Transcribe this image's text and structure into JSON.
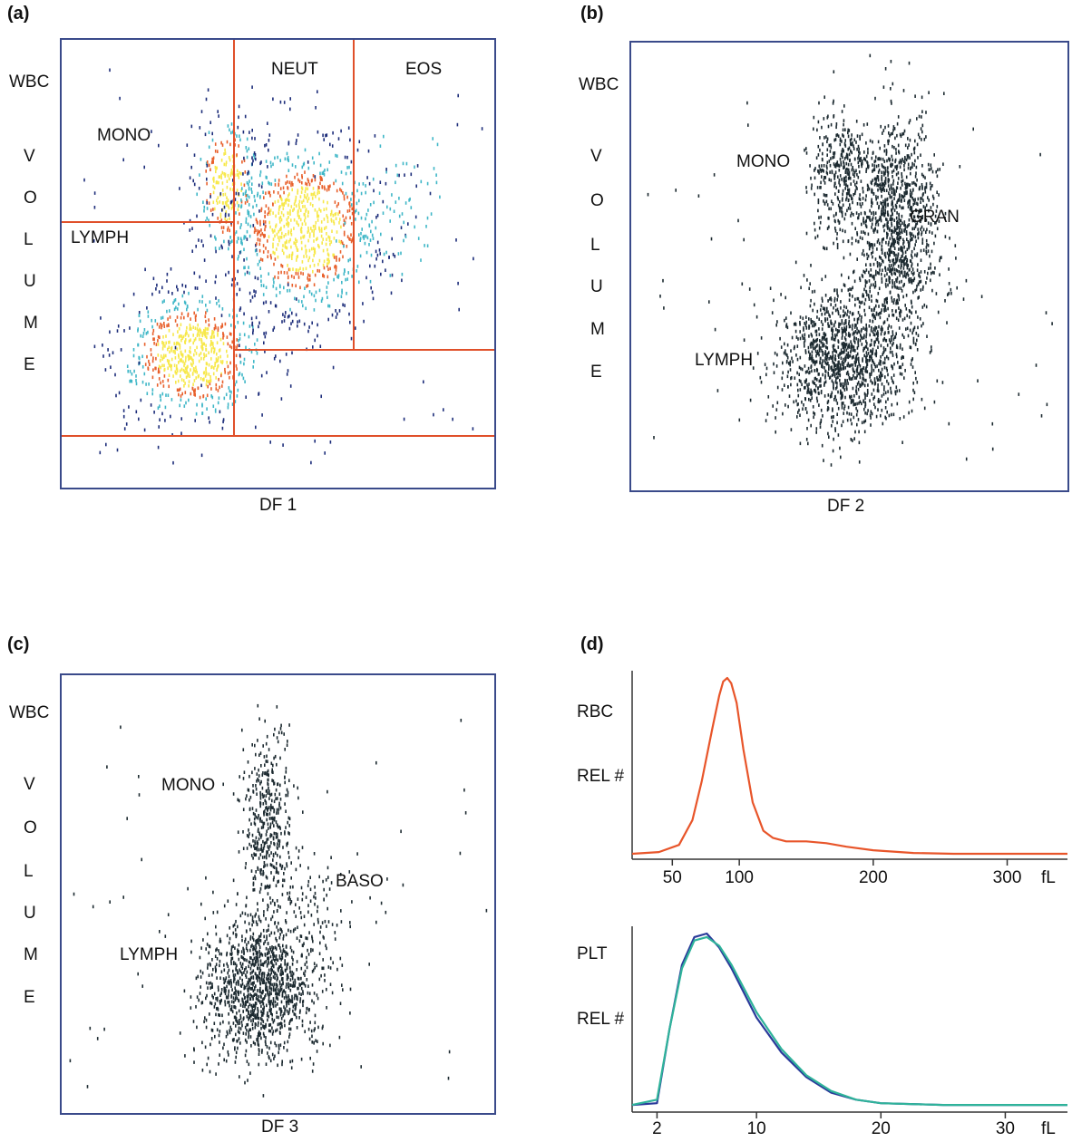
{
  "panels": {
    "a": {
      "label": "(a)",
      "y_label_top": "WBC",
      "y_label_letters": [
        "V",
        "O",
        "L",
        "U",
        "M",
        "E"
      ],
      "x_label": "DF 1",
      "regions": {
        "mono": "MONO",
        "neut": "NEUT",
        "eos": "EOS",
        "lymph": "LYMPH"
      },
      "colors": {
        "border": "#3a4a8a",
        "gate": "#e0502a",
        "core": "#f7e84a",
        "ring": "#e8602c",
        "halo": "#3fb7c7",
        "dot": "#1d2d7a"
      }
    },
    "b": {
      "label": "(b)",
      "y_label_top": "WBC",
      "y_label_letters": [
        "V",
        "O",
        "L",
        "U",
        "M",
        "E"
      ],
      "x_label": "DF 2",
      "regions": {
        "mono": "MONO",
        "gran": "GRAN",
        "lymph": "LYMPH"
      },
      "colors": {
        "dot": "#1c2a30"
      }
    },
    "c": {
      "label": "(c)",
      "y_label_top": "WBC",
      "y_label_letters": [
        "V",
        "O",
        "L",
        "U",
        "M",
        "E"
      ],
      "x_label": "DF 3",
      "regions": {
        "mono": "MONO",
        "baso": "BASO",
        "lymph": "LYMPH"
      },
      "colors": {
        "dot": "#1c2a30"
      }
    },
    "d": {
      "label": "(d)",
      "rbc": {
        "y_label_1": "RBC",
        "y_label_2": "REL #",
        "unit": "fL",
        "ticks": [
          "50",
          "100",
          "200",
          "300"
        ],
        "color": "#e8552a"
      },
      "plt": {
        "y_label_1": "PLT",
        "y_label_2": "REL #",
        "unit": "fL",
        "ticks": [
          "2",
          "10",
          "20",
          "30"
        ],
        "color_1": "#2a3a9a",
        "color_2": "#2fb39a"
      }
    }
  },
  "chart_data": [
    {
      "type": "scatter",
      "title": "",
      "xlabel": "DF 1",
      "ylabel": "WBC VOLUME",
      "clusters": [
        {
          "name": "LYMPH",
          "cx": 0.3,
          "cy": 0.3
        },
        {
          "name": "MONO",
          "cx": 0.38,
          "cy": 0.68
        },
        {
          "name": "NEUT",
          "cx": 0.56,
          "cy": 0.58
        },
        {
          "name": "EOS",
          "cx": 0.78,
          "cy": 0.62
        }
      ]
    },
    {
      "type": "scatter",
      "title": "",
      "xlabel": "DF 2",
      "ylabel": "WBC VOLUME",
      "clusters": [
        {
          "name": "LYMPH",
          "cx": 0.48,
          "cy": 0.3
        },
        {
          "name": "MONO",
          "cx": 0.48,
          "cy": 0.71
        },
        {
          "name": "GRAN",
          "cx": 0.61,
          "cy": 0.59
        }
      ]
    },
    {
      "type": "scatter",
      "title": "",
      "xlabel": "DF 3",
      "ylabel": "WBC VOLUME",
      "clusters": [
        {
          "name": "LYMPH",
          "cx": 0.46,
          "cy": 0.29
        },
        {
          "name": "MONO",
          "cx": 0.47,
          "cy": 0.66
        },
        {
          "name": "BASO",
          "cx": 0.57,
          "cy": 0.48
        }
      ]
    },
    {
      "type": "line",
      "title": "",
      "xlabel": "fL",
      "ylabel": "RBC REL #",
      "xlim": [
        20,
        345
      ],
      "x_ticks": [
        50,
        100,
        200,
        300
      ],
      "series": [
        {
          "name": "RBC",
          "x": [
            20,
            40,
            55,
            65,
            72,
            80,
            85,
            88,
            91,
            94,
            98,
            103,
            110,
            118,
            125,
            135,
            150,
            165,
            180,
            200,
            230,
            260,
            300,
            345
          ],
          "y": [
            0.01,
            0.02,
            0.06,
            0.2,
            0.42,
            0.72,
            0.9,
            0.98,
            1.0,
            0.97,
            0.86,
            0.6,
            0.3,
            0.14,
            0.1,
            0.08,
            0.08,
            0.07,
            0.05,
            0.03,
            0.015,
            0.01,
            0.01,
            0.01
          ]
        }
      ]
    },
    {
      "type": "line",
      "title": "",
      "xlabel": "fL",
      "ylabel": "PLT REL #",
      "xlim": [
        0,
        35
      ],
      "x_ticks": [
        2,
        10,
        20,
        30
      ],
      "series": [
        {
          "name": "PLT 1",
          "x": [
            0,
            2,
            3,
            4,
            5,
            6,
            7,
            8,
            10,
            12,
            14,
            16,
            18,
            20,
            25,
            30,
            35
          ],
          "y": [
            0.02,
            0.03,
            0.45,
            0.82,
            0.98,
            1.0,
            0.92,
            0.8,
            0.52,
            0.32,
            0.18,
            0.09,
            0.05,
            0.03,
            0.02,
            0.02,
            0.02
          ]
        },
        {
          "name": "PLT 2",
          "x": [
            0,
            2,
            3,
            4,
            5,
            6,
            7,
            8,
            10,
            12,
            14,
            16,
            18,
            20,
            25,
            30,
            35
          ],
          "y": [
            0.02,
            0.05,
            0.45,
            0.8,
            0.96,
            0.98,
            0.93,
            0.82,
            0.55,
            0.34,
            0.19,
            0.1,
            0.05,
            0.03,
            0.02,
            0.02,
            0.02
          ]
        }
      ]
    }
  ]
}
